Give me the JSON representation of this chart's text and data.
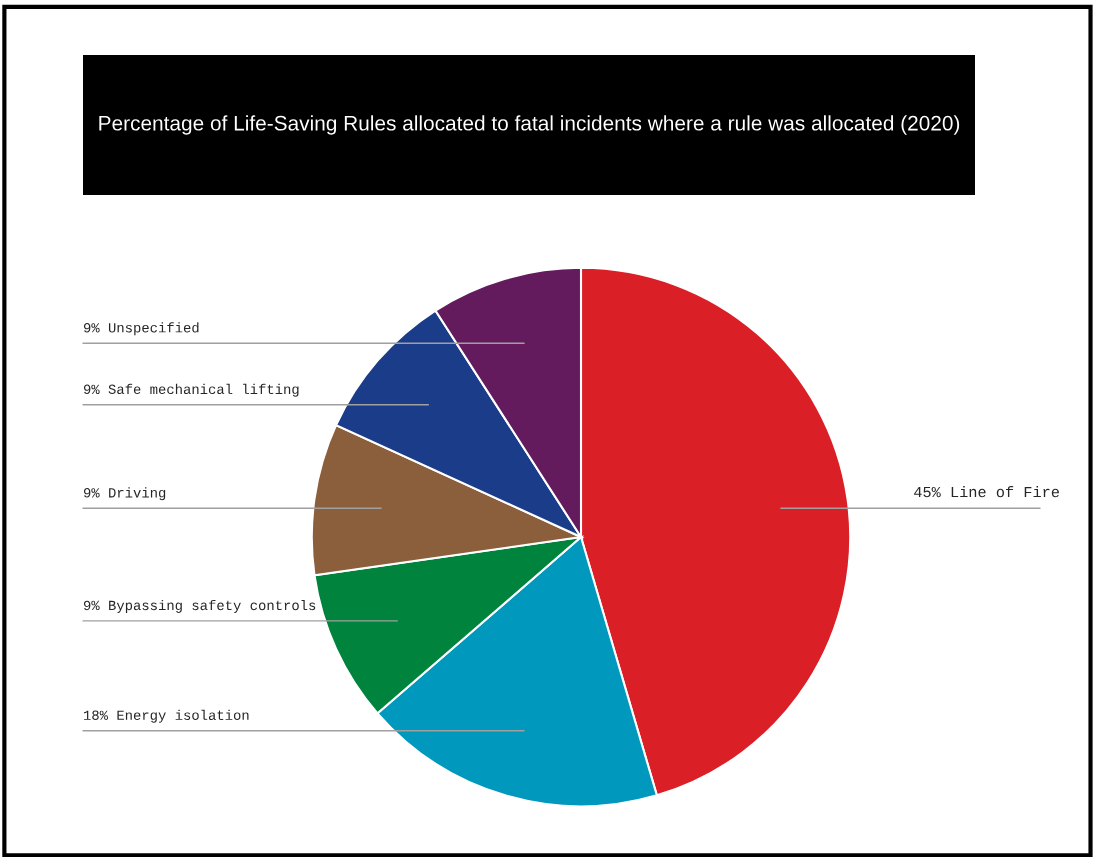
{
  "chart_data": {
    "type": "pie",
    "title": "Percentage of Life-Saving Rules allocated to fatal incidents where a rule was allocated (2020)",
    "categories": [
      "45% Line of Fire",
      "18% Energy isolation",
      "9% Bypassing safety controls",
      "9% Driving",
      "9% Safe mechanical lifting",
      "9% Unspecified"
    ],
    "values": [
      45,
      18,
      9,
      9,
      9,
      9
    ],
    "colors": [
      "#da1f26",
      "#0098bd",
      "#00843d",
      "#8b5e3c",
      "#1b3c88",
      "#641b5e"
    ],
    "legend": false
  }
}
